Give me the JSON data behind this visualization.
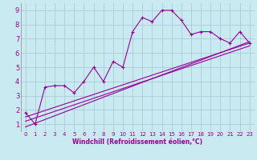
{
  "background_color": "#c8eaf0",
  "grid_color": "#aaccd8",
  "line_color": "#990099",
  "marker_color": "#990099",
  "xlabel": "Windchill (Refroidissement éolien,°C)",
  "xlabel_color": "#990099",
  "tick_color": "#990099",
  "xlim": [
    -0.5,
    23.5
  ],
  "ylim": [
    0.5,
    9.5
  ],
  "yticks": [
    1,
    2,
    3,
    4,
    5,
    6,
    7,
    8,
    9
  ],
  "xticks": [
    0,
    1,
    2,
    3,
    4,
    5,
    6,
    7,
    8,
    9,
    10,
    11,
    12,
    13,
    14,
    15,
    16,
    17,
    18,
    19,
    20,
    21,
    22,
    23
  ],
  "series1_x": [
    0,
    1,
    2,
    3,
    4,
    5,
    6,
    7,
    8,
    9,
    10,
    11,
    12,
    13,
    14,
    15,
    16,
    17,
    18,
    19,
    20,
    21,
    22,
    23
  ],
  "series1_y": [
    1.8,
    1.0,
    3.6,
    3.7,
    3.7,
    3.2,
    4.0,
    5.0,
    4.0,
    5.4,
    5.0,
    7.5,
    8.5,
    8.2,
    9.0,
    9.0,
    8.3,
    7.3,
    7.5,
    7.5,
    7.0,
    6.7,
    7.5,
    6.7
  ],
  "series2_x": [
    0,
    23
  ],
  "series2_y": [
    1.5,
    6.7
  ],
  "series3_x": [
    0,
    23
  ],
  "series3_y": [
    1.2,
    6.5
  ],
  "series4_x": [
    0,
    23
  ],
  "series4_y": [
    0.8,
    6.8
  ]
}
